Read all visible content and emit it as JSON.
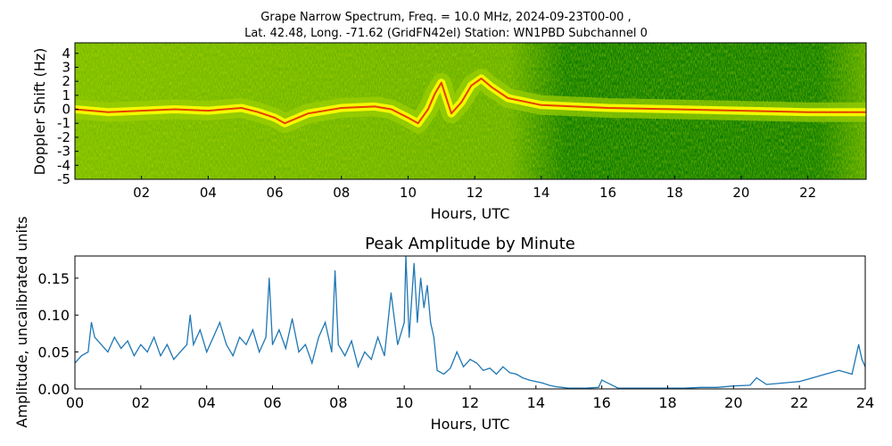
{
  "figure": {
    "title_line1": "Grape Narrow Spectrum, Freq. = 10.0 MHz, 2024-09-23T00-00 ,",
    "title_line2": "Lat.  42.48, Long. -71.62 (GridFN42el) Station: WN1PBD Subchannel 0"
  },
  "colors": {
    "spectrogram_background": "#0a7a00",
    "spectrogram_noise": "#9ed000",
    "spectrogram_band": "#ffff00",
    "spectrogram_peak": "#e02000",
    "line": "#1f77b4"
  },
  "chart_data": [
    {
      "type": "heatmap",
      "title": "",
      "xlabel": "Hours, UTC",
      "ylabel": "Doppler Shift (Hz)",
      "xlim": [
        0,
        23.75
      ],
      "ylim": [
        -5,
        4.75
      ],
      "xticks": [
        "02",
        "04",
        "06",
        "08",
        "10",
        "12",
        "14",
        "16",
        "18",
        "20",
        "22"
      ],
      "xtick_values": [
        2,
        4,
        6,
        8,
        10,
        12,
        14,
        16,
        18,
        20,
        22
      ],
      "yticks": [
        "4",
        "3",
        "2",
        "1",
        "0",
        "-1",
        "-2",
        "-3",
        "-4",
        "-5"
      ],
      "ytick_values": [
        4,
        3,
        2,
        1,
        0,
        -1,
        -2,
        -3,
        -4,
        -5
      ],
      "peak_doppler_trace": {
        "x": [
          0,
          0.5,
          1,
          2,
          3,
          4,
          5,
          5.5,
          6,
          6.3,
          7,
          8,
          9,
          9.5,
          10,
          10.3,
          10.6,
          10.8,
          11,
          11.3,
          11.6,
          11.9,
          12.2,
          12.5,
          13,
          14,
          16,
          18,
          20,
          22,
          23.75
        ],
        "y": [
          0.0,
          -0.1,
          -0.2,
          -0.1,
          0.0,
          -0.1,
          0.1,
          -0.2,
          -0.6,
          -1.0,
          -0.3,
          0.1,
          0.2,
          0.0,
          -0.6,
          -1.0,
          0.0,
          1.1,
          1.9,
          -0.3,
          0.5,
          1.7,
          2.2,
          1.6,
          0.8,
          0.3,
          0.1,
          0.0,
          -0.1,
          -0.2,
          -0.2
        ]
      }
    },
    {
      "type": "line",
      "title": "Peak Amplitude by Minute",
      "xlabel": "Hours, UTC",
      "ylabel": "Amplitude, uncalibrated units",
      "xlim": [
        0,
        24
      ],
      "ylim": [
        0,
        0.18
      ],
      "xticks": [
        "00",
        "02",
        "04",
        "06",
        "08",
        "10",
        "12",
        "14",
        "16",
        "18",
        "20",
        "22",
        "24"
      ],
      "xtick_values": [
        0,
        2,
        4,
        6,
        8,
        10,
        12,
        14,
        16,
        18,
        20,
        22,
        24
      ],
      "yticks": [
        "0.15",
        "0.10",
        "0.05",
        "0.00"
      ],
      "ytick_values": [
        0.15,
        0.1,
        0.05,
        0.0
      ],
      "series": [
        {
          "x": [
            0,
            0.2,
            0.4,
            0.5,
            0.6,
            0.8,
            1.0,
            1.2,
            1.4,
            1.6,
            1.8,
            2.0,
            2.2,
            2.4,
            2.6,
            2.8,
            3.0,
            3.2,
            3.4,
            3.5,
            3.6,
            3.8,
            4.0,
            4.2,
            4.4,
            4.6,
            4.8,
            5.0,
            5.2,
            5.4,
            5.6,
            5.8,
            5.9,
            6.0,
            6.2,
            6.4,
            6.6,
            6.8,
            7.0,
            7.2,
            7.4,
            7.6,
            7.8,
            7.9,
            8.0,
            8.2,
            8.4,
            8.6,
            8.8,
            9.0,
            9.2,
            9.4,
            9.6,
            9.8,
            10.0,
            10.05,
            10.15,
            10.3,
            10.4,
            10.5,
            10.6,
            10.7,
            10.8,
            10.9,
            11.0,
            11.2,
            11.4,
            11.6,
            11.8,
            12.0,
            12.2,
            12.4,
            12.6,
            12.8,
            13.0,
            13.2,
            13.4,
            13.6,
            13.8,
            14.0,
            14.2,
            14.4,
            14.6,
            14.8,
            15.0,
            15.5,
            15.9,
            16.0,
            16.5,
            17.0,
            17.5,
            18.0,
            18.5,
            19.0,
            19.5,
            20.0,
            20.5,
            20.7,
            21.0,
            21.5,
            22.0,
            22.4,
            22.8,
            23.2,
            23.6,
            23.8,
            23.9,
            24.0
          ],
          "values": [
            0.035,
            0.045,
            0.05,
            0.09,
            0.07,
            0.06,
            0.05,
            0.07,
            0.055,
            0.065,
            0.045,
            0.06,
            0.05,
            0.07,
            0.045,
            0.06,
            0.04,
            0.05,
            0.06,
            0.1,
            0.06,
            0.08,
            0.05,
            0.07,
            0.09,
            0.06,
            0.045,
            0.07,
            0.06,
            0.08,
            0.05,
            0.07,
            0.15,
            0.06,
            0.08,
            0.055,
            0.095,
            0.05,
            0.06,
            0.035,
            0.07,
            0.09,
            0.05,
            0.16,
            0.06,
            0.045,
            0.065,
            0.03,
            0.05,
            0.04,
            0.07,
            0.045,
            0.13,
            0.06,
            0.09,
            0.18,
            0.07,
            0.17,
            0.09,
            0.15,
            0.11,
            0.14,
            0.09,
            0.07,
            0.025,
            0.02,
            0.028,
            0.05,
            0.03,
            0.04,
            0.035,
            0.025,
            0.028,
            0.02,
            0.03,
            0.022,
            0.02,
            0.015,
            0.012,
            0.01,
            0.008,
            0.005,
            0.003,
            0.002,
            0.001,
            0.001,
            0.002,
            0.012,
            0.001,
            0.001,
            0.001,
            0.001,
            0.001,
            0.002,
            0.002,
            0.004,
            0.005,
            0.015,
            0.006,
            0.008,
            0.01,
            0.015,
            0.02,
            0.025,
            0.02,
            0.06,
            0.04,
            0.03
          ]
        }
      ]
    }
  ]
}
